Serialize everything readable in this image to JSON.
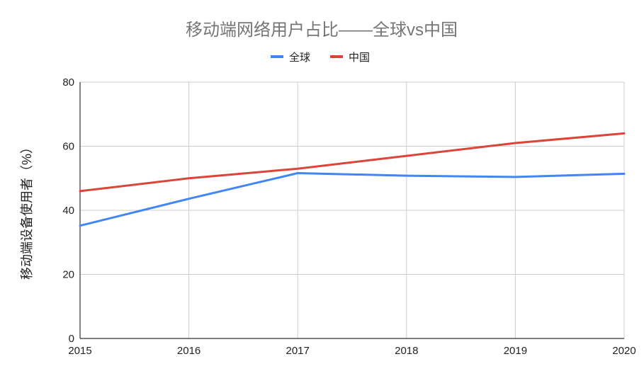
{
  "chart_data": {
    "type": "line",
    "title": "移动端网络用户占比——全球vs中国",
    "xlabel": "",
    "ylabel": "移动端设备使用者（%）",
    "x": [
      "2015",
      "2016",
      "2017",
      "2018",
      "2019",
      "2020"
    ],
    "ylim": [
      0,
      80
    ],
    "yticks": [
      0,
      20,
      40,
      60,
      80
    ],
    "grid": true,
    "legend_position": "top",
    "series": [
      {
        "name": "全球",
        "color": "#4285f4",
        "values": [
          35.2,
          43.6,
          51.6,
          50.8,
          50.4,
          51.4
        ]
      },
      {
        "name": "中国",
        "color": "#db4437",
        "values": [
          46,
          50,
          53,
          57,
          61,
          64
        ]
      }
    ]
  }
}
